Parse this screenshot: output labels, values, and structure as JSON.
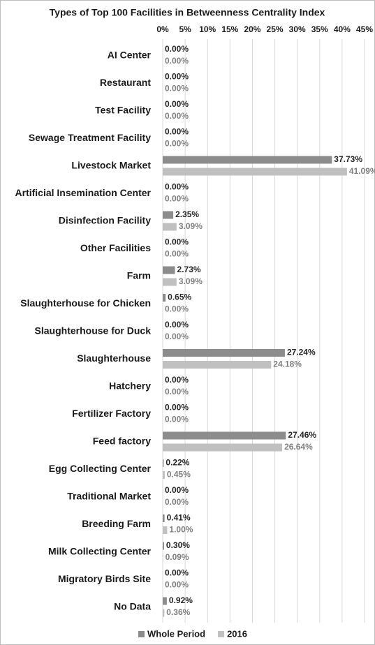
{
  "chart_data": {
    "type": "hbar",
    "title": "Types of Top 100 Facilities in Betweenness Centrality Index",
    "categories": [
      "AI Center",
      "Restaurant",
      "Test Facility",
      "Sewage Treatment Facility",
      "Livestock Market",
      "Artificial Insemination Center",
      "Disinfection Facility",
      "Other Facilities",
      "Farm",
      "Slaughterhouse for Chicken",
      "Slaughterhouse for Duck",
      "Slaughterhouse",
      "Hatchery",
      "Fertilizer Factory",
      "Feed factory",
      "Egg Collecting Center",
      "Traditional Market",
      "Breeding Farm",
      "Milk Collecting Center",
      "Migratory Birds Site",
      "No Data"
    ],
    "series": [
      {
        "name": "Whole Period",
        "color": "#8c8c8c",
        "label_color": "#262626",
        "values": [
          0,
          0,
          0,
          0,
          37.73,
          0,
          2.35,
          0,
          2.73,
          0.65,
          0,
          27.24,
          0,
          0,
          27.46,
          0.22,
          0,
          0.41,
          0.3,
          0,
          0.92
        ],
        "value_labels": [
          "0.00%",
          "0.00%",
          "0.00%",
          "0.00%",
          "37.73%",
          "0.00%",
          "2.35%",
          "0.00%",
          "2.73%",
          "0.65%",
          "0.00%",
          "27.24%",
          "0.00%",
          "0.00%",
          "27.46%",
          "0.22%",
          "0.00%",
          "0.41%",
          "0.30%",
          "0.00%",
          "0.92%"
        ]
      },
      {
        "name": "2016",
        "color": "#c0c0c0",
        "label_color": "#7f7f7f",
        "values": [
          0,
          0,
          0,
          0,
          41.09,
          0,
          3.09,
          0,
          3.09,
          0,
          0,
          24.18,
          0,
          0,
          26.64,
          0.45,
          0,
          1.0,
          0.09,
          0,
          0.36
        ],
        "value_labels": [
          "0.00%",
          "0.00%",
          "0.00%",
          "0.00%",
          "41.09%",
          "0.00%",
          "3.09%",
          "0.00%",
          "3.09%",
          "0.00%",
          "0.00%",
          "24.18%",
          "0.00%",
          "0.00%",
          "26.64%",
          "0.45%",
          "0.00%",
          "1.00%",
          "0.09%",
          "0.00%",
          "0.36%"
        ]
      }
    ],
    "xlim": [
      0,
      45
    ],
    "xticks": [
      {
        "value": 0,
        "label": "0%"
      },
      {
        "value": 5,
        "label": "5%"
      },
      {
        "value": 10,
        "label": "10%"
      },
      {
        "value": 15,
        "label": "15%"
      },
      {
        "value": 20,
        "label": "20%"
      },
      {
        "value": 25,
        "label": "25%"
      },
      {
        "value": 30,
        "label": "30%"
      },
      {
        "value": 35,
        "label": "35%"
      },
      {
        "value": 40,
        "label": "40%"
      },
      {
        "value": 45,
        "label": "45%"
      }
    ],
    "grid": true,
    "legend": "bottom"
  }
}
